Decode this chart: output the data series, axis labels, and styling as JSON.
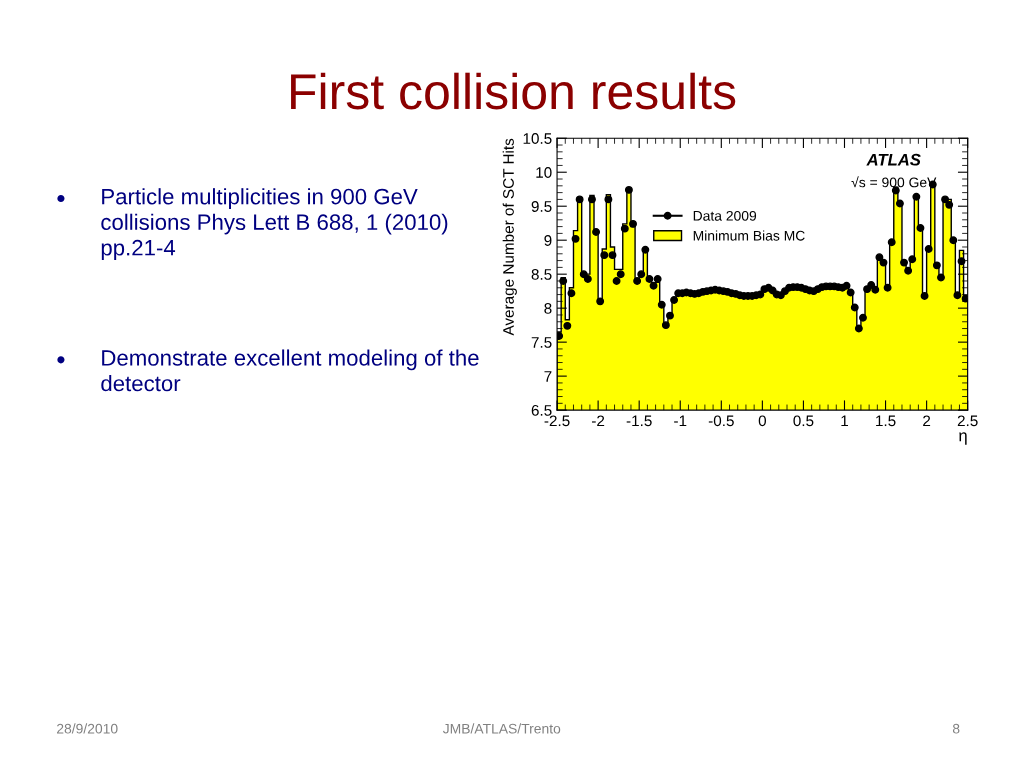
{
  "chart_data": {
    "type": "histogram",
    "title": "First collision results",
    "xlabel": "η",
    "ylabel": "Average Number of SCT Hits",
    "bins": [
      -2.5,
      -2.45,
      -2.4,
      -2.35,
      -2.3,
      -2.25,
      -2.2,
      -2.15,
      -2.1,
      -2.05,
      -2.0,
      -1.95,
      -1.9,
      -1.85,
      -1.8,
      -1.75,
      -1.7,
      -1.65,
      -1.6,
      -1.55,
      -1.5,
      -1.45,
      -1.4,
      -1.35,
      -1.3,
      -1.25,
      -1.2,
      -1.15,
      -1.1,
      -1.05,
      -1.0,
      -0.95,
      -0.9,
      -0.85,
      -0.8,
      -0.75,
      -0.7,
      -0.65,
      -0.6,
      -0.55,
      -0.5,
      -0.45,
      -0.4,
      -0.35,
      -0.3,
      -0.25,
      -0.2,
      -0.15,
      -0.1,
      -0.05,
      0.0,
      0.05,
      0.1,
      0.15,
      0.2,
      0.25,
      0.3,
      0.35,
      0.4,
      0.45,
      0.5,
      0.55,
      0.6,
      0.65,
      0.7,
      0.75,
      0.8,
      0.85,
      0.9,
      0.95,
      1.0,
      1.05,
      1.1,
      1.15,
      1.2,
      1.25,
      1.3,
      1.35,
      1.4,
      1.45,
      1.5,
      1.55,
      1.6,
      1.65,
      1.7,
      1.75,
      1.8,
      1.85,
      1.9,
      1.95,
      2.0,
      2.05,
      2.1,
      2.15,
      2.2,
      2.25,
      2.3,
      2.35,
      2.4,
      2.45,
      2.5
    ],
    "series": [
      {
        "name": "Minimum Bias MC",
        "color": "#ffff00",
        "values": [
          7.65,
          8.45,
          7.83,
          8.3,
          9.14,
          9.62,
          8.52,
          8.5,
          9.66,
          9.12,
          8.12,
          8.87,
          9.67,
          8.9,
          8.57,
          8.57,
          9.24,
          9.75,
          9.2,
          8.4,
          8.52,
          8.82,
          8.4,
          8.32,
          8.38,
          8.05,
          7.77,
          7.92,
          8.12,
          8.22,
          8.22,
          8.23,
          8.22,
          8.21,
          8.22,
          8.24,
          8.25,
          8.26,
          8.27,
          8.26,
          8.25,
          8.24,
          8.22,
          8.21,
          8.19,
          8.18,
          8.18,
          8.18,
          8.19,
          8.2,
          8.28,
          8.3,
          8.26,
          8.2,
          8.19,
          8.25,
          8.3,
          8.31,
          8.31,
          8.3,
          8.28,
          8.26,
          8.25,
          8.28,
          8.31,
          8.32,
          8.32,
          8.32,
          8.31,
          8.3,
          8.33,
          8.23,
          8.01,
          7.72,
          7.86,
          8.28,
          8.34,
          8.27,
          8.77,
          8.67,
          8.3,
          8.97,
          9.78,
          9.54,
          8.67,
          8.55,
          8.72,
          9.64,
          9.18,
          8.18,
          8.87,
          9.85,
          8.63,
          8.45,
          9.6,
          9.6,
          9.0,
          8.2,
          8.85,
          8.14
        ]
      },
      {
        "name": "Data 2009",
        "type": "scatter",
        "color": "#000000",
        "marker": "circle",
        "x": [
          -2.475,
          -2.425,
          -2.375,
          -2.325,
          -2.275,
          -2.225,
          -2.175,
          -2.125,
          -2.075,
          -2.025,
          -1.975,
          -1.925,
          -1.875,
          -1.825,
          -1.775,
          -1.725,
          -1.675,
          -1.625,
          -1.575,
          -1.525,
          -1.475,
          -1.425,
          -1.375,
          -1.325,
          -1.275,
          -1.225,
          -1.175,
          -1.125,
          -1.075,
          -1.025,
          -0.975,
          -0.925,
          -0.875,
          -0.825,
          -0.775,
          -0.725,
          -0.675,
          -0.625,
          -0.575,
          -0.525,
          -0.475,
          -0.425,
          -0.375,
          -0.325,
          -0.275,
          -0.225,
          -0.175,
          -0.125,
          -0.075,
          -0.025,
          0.025,
          0.075,
          0.125,
          0.175,
          0.225,
          0.275,
          0.325,
          0.375,
          0.425,
          0.475,
          0.525,
          0.575,
          0.625,
          0.675,
          0.725,
          0.775,
          0.825,
          0.875,
          0.925,
          0.975,
          1.025,
          1.075,
          1.125,
          1.175,
          1.225,
          1.275,
          1.325,
          1.375,
          1.425,
          1.475,
          1.525,
          1.575,
          1.625,
          1.675,
          1.725,
          1.775,
          1.825,
          1.875,
          1.925,
          1.975,
          2.025,
          2.075,
          2.125,
          2.175,
          2.225,
          2.275,
          2.325,
          2.375,
          2.425,
          2.475
        ],
        "values": [
          7.59,
          8.4,
          7.74,
          8.22,
          9.02,
          9.6,
          8.5,
          8.43,
          9.6,
          9.12,
          8.1,
          8.78,
          9.6,
          8.78,
          8.4,
          8.5,
          9.17,
          9.74,
          9.24,
          8.4,
          8.5,
          8.86,
          8.43,
          8.33,
          8.43,
          8.05,
          7.75,
          7.89,
          8.12,
          8.22,
          8.22,
          8.23,
          8.22,
          8.21,
          8.22,
          8.24,
          8.25,
          8.26,
          8.27,
          8.26,
          8.25,
          8.24,
          8.22,
          8.21,
          8.19,
          8.18,
          8.18,
          8.18,
          8.19,
          8.2,
          8.28,
          8.3,
          8.26,
          8.2,
          8.19,
          8.25,
          8.3,
          8.31,
          8.31,
          8.3,
          8.28,
          8.26,
          8.25,
          8.28,
          8.31,
          8.32,
          8.32,
          8.32,
          8.31,
          8.3,
          8.33,
          8.23,
          8.01,
          7.7,
          7.86,
          8.28,
          8.34,
          8.27,
          8.75,
          8.67,
          8.3,
          8.97,
          9.73,
          9.54,
          8.67,
          8.55,
          8.72,
          9.64,
          9.18,
          8.18,
          8.87,
          9.82,
          8.63,
          8.45,
          9.6,
          9.52,
          9.0,
          8.19,
          8.69,
          8.14
        ]
      }
    ],
    "xlim": [
      -2.5,
      2.5
    ],
    "xticks": [
      -2.5,
      -2,
      -1.5,
      -1,
      -0.5,
      0,
      0.5,
      1,
      1.5,
      2,
      2.5
    ],
    "ylim": [
      6.5,
      10.5
    ],
    "yticks": [
      6.5,
      7,
      7.5,
      8,
      8.5,
      9,
      9.5,
      10,
      10.5
    ],
    "grid": false,
    "legend": "top",
    "annotations": [
      "•",
      "•",
      "Particle multiplicities in 900 GeV collisions Phys Lett B 688, 1 (2010) pp.21-4",
      "Demonstrate excellent modeling of the detector",
      "ATLAS",
      "√s = 900 GeV",
      "28/9/2010",
      "JMB/ATLAS/Trento",
      "8"
    ]
  }
}
